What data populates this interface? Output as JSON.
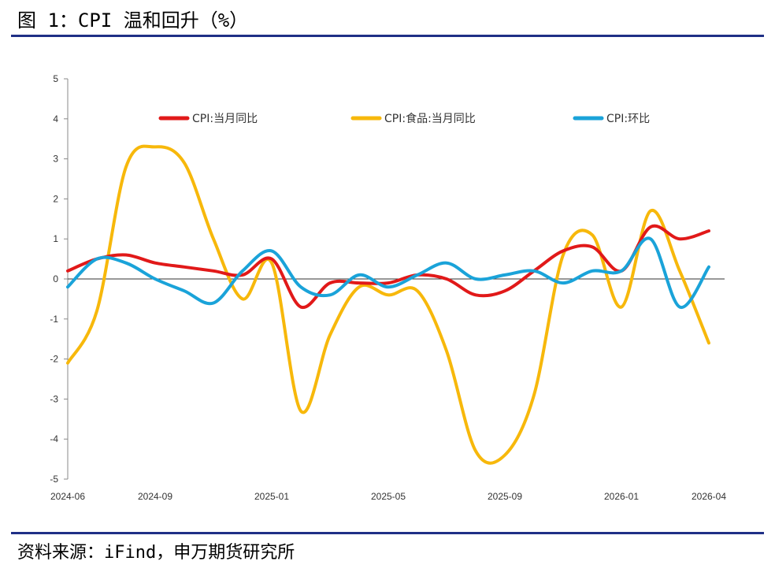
{
  "title": "图 1：CPI 温和回升（%）",
  "source": "资料来源：iFind，申万期货研究所",
  "chart_data": {
    "type": "line",
    "x": [
      "2024-06",
      "2024-07",
      "2024-08",
      "2024-09",
      "2024-10",
      "2024-11",
      "2024-12",
      "2025-01",
      "2025-02",
      "2025-03",
      "2025-04",
      "2025-05",
      "2025-06",
      "2025-07",
      "2025-08",
      "2025-09",
      "2025-10",
      "2025-11",
      "2025-12",
      "2026-01",
      "2026-02",
      "2026-03",
      "2026-04"
    ],
    "xticks": [
      "2024-06",
      "2024-09",
      "2025-01",
      "2025-05",
      "2025-09",
      "2026-01",
      "2026-04"
    ],
    "ylim": [
      -5,
      5
    ],
    "yticks": [
      -5,
      -4,
      -3,
      -2,
      -1,
      0,
      1,
      2,
      3,
      4,
      5
    ],
    "legend_position": "top",
    "series": [
      {
        "name": "CPI:当月同比",
        "color": "#e11919",
        "values": [
          0.2,
          0.5,
          0.6,
          0.4,
          0.3,
          0.2,
          0.1,
          0.5,
          -0.7,
          -0.1,
          -0.1,
          -0.1,
          0.1,
          0.0,
          -0.4,
          -0.3,
          0.2,
          0.7,
          0.8,
          0.2,
          1.3,
          1.0,
          1.2
        ]
      },
      {
        "name": "CPI:食品:当月同比",
        "color": "#f7b80b",
        "values": [
          -2.1,
          -0.8,
          2.8,
          3.3,
          2.9,
          1.0,
          -0.5,
          0.4,
          -3.3,
          -1.4,
          -0.2,
          -0.4,
          -0.3,
          -1.8,
          -4.3,
          -4.4,
          -2.9,
          0.6,
          1.1,
          -0.7,
          1.7,
          0.2,
          -1.6
        ]
      },
      {
        "name": "CPI:环比",
        "color": "#1aa3d9",
        "values": [
          -0.2,
          0.5,
          0.4,
          0.0,
          -0.3,
          -0.6,
          0.2,
          0.7,
          -0.2,
          -0.4,
          0.1,
          -0.2,
          0.1,
          0.4,
          0.0,
          0.1,
          0.2,
          -0.1,
          0.2,
          0.2,
          1.0,
          -0.7,
          0.3
        ]
      }
    ]
  }
}
